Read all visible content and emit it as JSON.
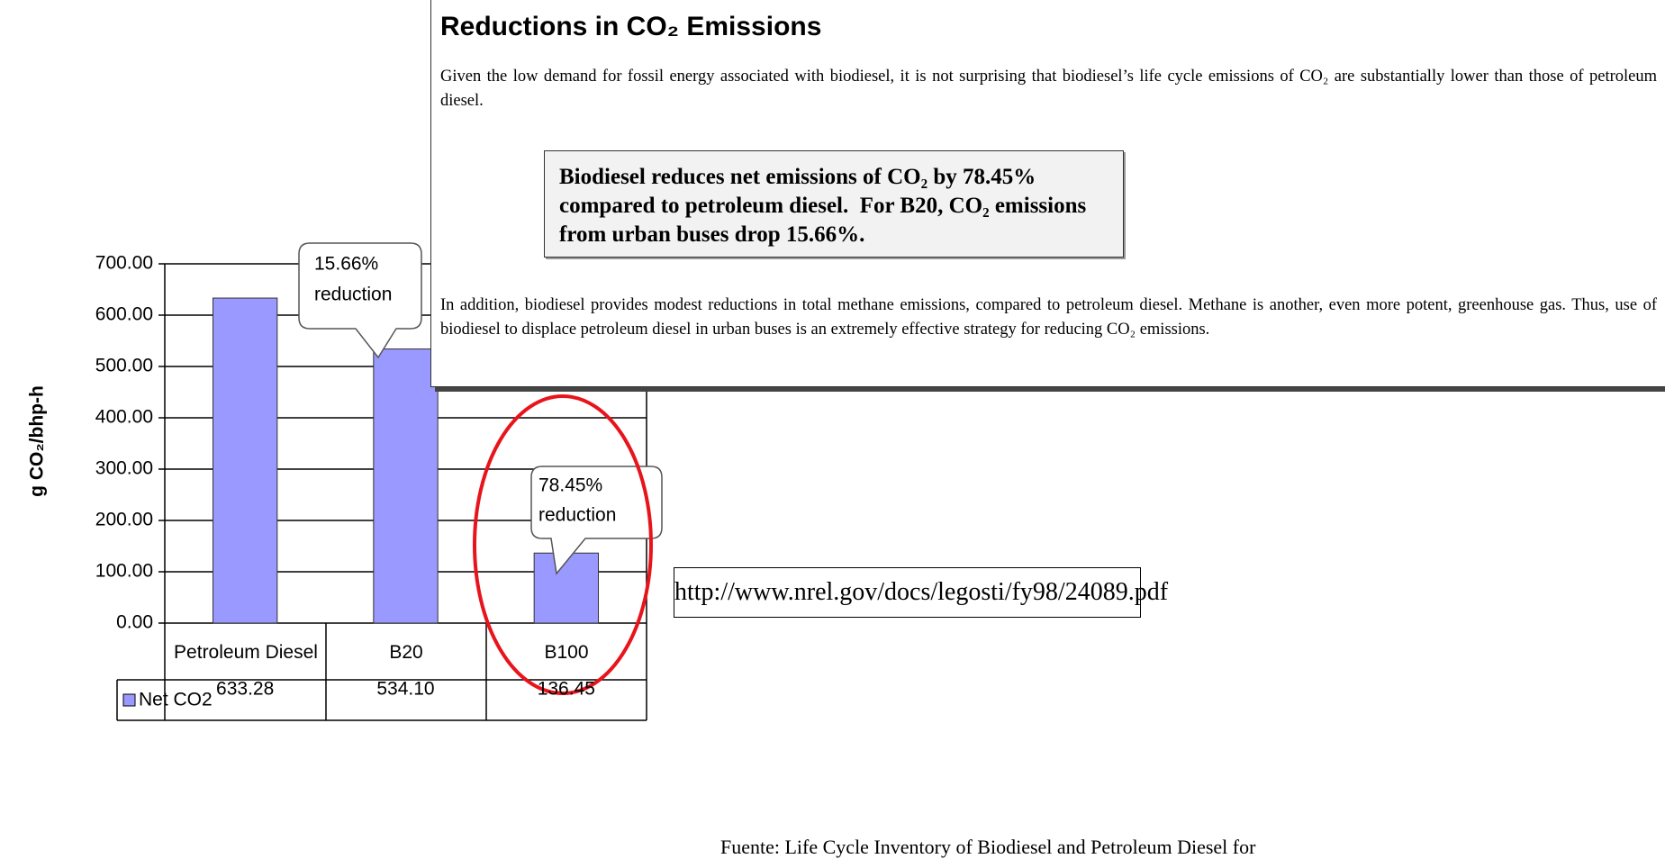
{
  "chart_data": {
    "type": "bar",
    "ylabel": "g CO₂/bhp-h",
    "categories": [
      "Petroleum Diesel",
      "B20",
      "B100"
    ],
    "series": [
      {
        "name": "Net CO2",
        "color": "#9999ff",
        "values": [
          633.28,
          534.1,
          136.45
        ],
        "value_labels": [
          "633.28",
          "534.10",
          "136.45"
        ]
      }
    ],
    "ylim": [
      0,
      700
    ],
    "yticks": [
      {
        "value": 0,
        "label": "0.00"
      },
      {
        "value": 100,
        "label": "100.00"
      },
      {
        "value": 200,
        "label": "200.00"
      },
      {
        "value": 300,
        "label": "300.00"
      },
      {
        "value": 400,
        "label": "400.00"
      },
      {
        "value": 500,
        "label": "500.00"
      },
      {
        "value": 600,
        "label": "600.00"
      },
      {
        "value": 700,
        "label": "700.00"
      }
    ],
    "grid": true,
    "annotations": [
      {
        "lines": [
          "15.66%",
          "reduction"
        ]
      },
      {
        "lines": [
          "78.45%",
          "reduction"
        ]
      }
    ]
  },
  "document": {
    "title": "Reductions in CO₂ Emissions",
    "paragraphs": [
      "Given the low demand for fossil energy associated with biodiesel, it is not surprising that biodiesel’s life cycle emissions of CO₂ are substantially lower than those of petroleum diesel.",
      "In addition, biodiesel provides modest reductions in total methane emissions, compared to petroleum diesel.  Methane is another, even more potent, greenhouse gas.  Thus, use of biodiesel to displace petroleum diesel in urban buses is an extremely effective strategy for reducing CO₂ emissions."
    ],
    "highlight": [
      "Biodiesel reduces net emissions of CO₂ by 78.45%",
      "compared to petroleum diesel.  For B20, CO₂ emissions",
      "from urban buses drop 15.66%."
    ],
    "url": "http://www.nrel.gov/docs/legosti/fy98/24089.pdf",
    "source": "Fuente: Life Cycle Inventory of Biodiesel and Petroleum Diesel for"
  }
}
